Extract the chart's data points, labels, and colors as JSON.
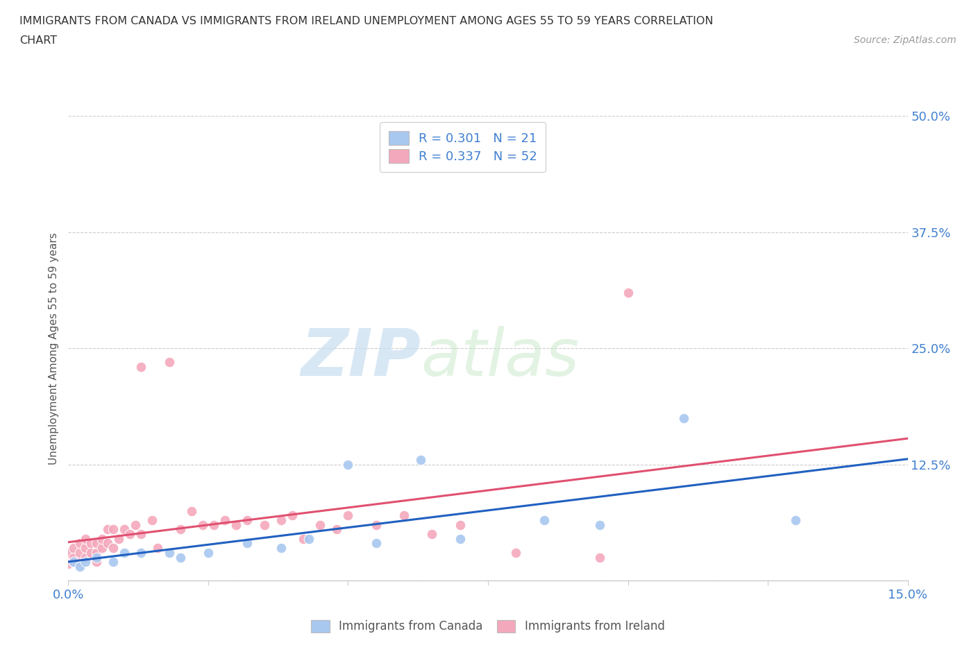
{
  "title_line1": "IMMIGRANTS FROM CANADA VS IMMIGRANTS FROM IRELAND UNEMPLOYMENT AMONG AGES 55 TO 59 YEARS CORRELATION",
  "title_line2": "CHART",
  "source": "Source: ZipAtlas.com",
  "ylabel": "Unemployment Among Ages 55 to 59 years",
  "xlim": [
    0.0,
    0.15
  ],
  "ylim": [
    0.0,
    0.5
  ],
  "yticks": [
    0.0,
    0.125,
    0.25,
    0.375,
    0.5
  ],
  "ytick_labels": [
    "",
    "12.5%",
    "25.0%",
    "37.5%",
    "50.0%"
  ],
  "xticks": [
    0.0,
    0.025,
    0.05,
    0.075,
    0.1,
    0.125,
    0.15
  ],
  "canada_R": 0.301,
  "canada_N": 21,
  "ireland_R": 0.337,
  "ireland_N": 52,
  "canada_color": "#a8c8f0",
  "ireland_color": "#f4a8bc",
  "trend_canada_color": "#2060c0",
  "trend_ireland_color": "#e05070",
  "background_color": "#ffffff",
  "watermark_zip": "ZIP",
  "watermark_atlas": "atlas",
  "canada_x": [
    0.001,
    0.002,
    0.003,
    0.005,
    0.008,
    0.01,
    0.013,
    0.018,
    0.02,
    0.025,
    0.032,
    0.038,
    0.043,
    0.05,
    0.055,
    0.063,
    0.07,
    0.085,
    0.095,
    0.11,
    0.13
  ],
  "canada_y": [
    0.02,
    0.015,
    0.02,
    0.025,
    0.02,
    0.03,
    0.03,
    0.03,
    0.025,
    0.03,
    0.04,
    0.035,
    0.045,
    0.125,
    0.04,
    0.13,
    0.045,
    0.065,
    0.06,
    0.175,
    0.065
  ],
  "ireland_x": [
    0.0,
    0.0,
    0.001,
    0.001,
    0.001,
    0.002,
    0.002,
    0.002,
    0.003,
    0.003,
    0.003,
    0.004,
    0.004,
    0.005,
    0.005,
    0.005,
    0.006,
    0.006,
    0.007,
    0.007,
    0.008,
    0.008,
    0.009,
    0.01,
    0.011,
    0.012,
    0.013,
    0.013,
    0.015,
    0.016,
    0.018,
    0.02,
    0.022,
    0.024,
    0.026,
    0.028,
    0.03,
    0.032,
    0.035,
    0.038,
    0.04,
    0.042,
    0.045,
    0.048,
    0.05,
    0.055,
    0.06,
    0.065,
    0.07,
    0.08,
    0.095,
    0.1
  ],
  "ireland_y": [
    0.018,
    0.03,
    0.02,
    0.025,
    0.035,
    0.02,
    0.03,
    0.04,
    0.025,
    0.035,
    0.045,
    0.03,
    0.04,
    0.02,
    0.03,
    0.04,
    0.035,
    0.045,
    0.04,
    0.055,
    0.035,
    0.055,
    0.045,
    0.055,
    0.05,
    0.06,
    0.05,
    0.23,
    0.065,
    0.035,
    0.235,
    0.055,
    0.075,
    0.06,
    0.06,
    0.065,
    0.06,
    0.065,
    0.06,
    0.065,
    0.07,
    0.045,
    0.06,
    0.055,
    0.07,
    0.06,
    0.07,
    0.05,
    0.06,
    0.03,
    0.025,
    0.31
  ]
}
